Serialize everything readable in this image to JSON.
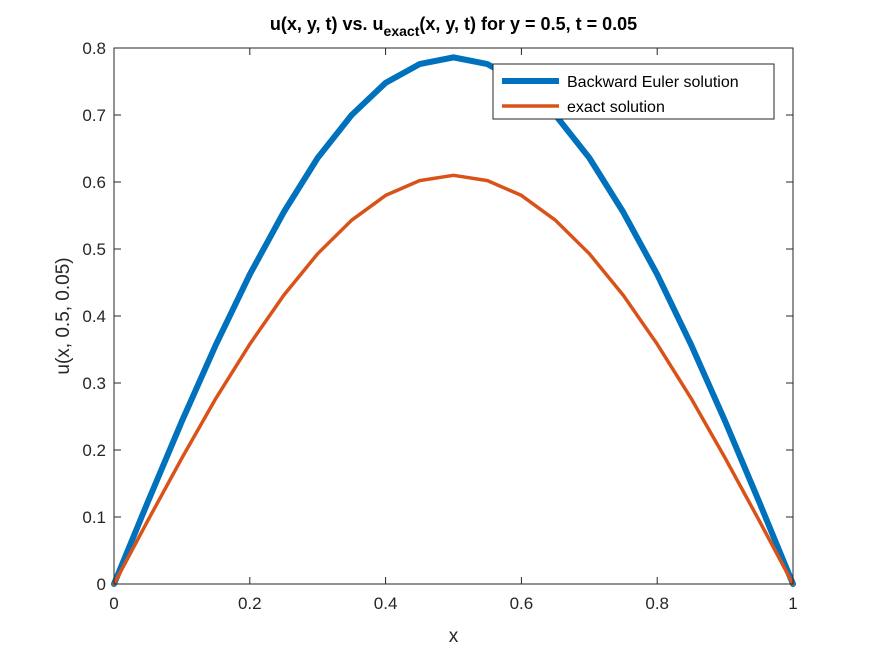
{
  "chart_data": {
    "type": "line",
    "title": {
      "part1": "u(x, y, t) vs. u",
      "subscript": "exact",
      "part2": "(x, y, t) for y = 0.5, t = 0.05"
    },
    "xlabel": "x",
    "ylabel": "u(x, 0.5, 0.05)",
    "xlim": [
      0,
      1
    ],
    "ylim": [
      0,
      0.8
    ],
    "xticks": [
      0,
      0.2,
      0.4,
      0.6,
      0.8,
      1
    ],
    "xtick_labels": [
      "0",
      "0.2",
      "0.4",
      "0.6",
      "0.8",
      "1"
    ],
    "yticks": [
      0,
      0.1,
      0.2,
      0.3,
      0.4,
      0.5,
      0.6,
      0.7,
      0.8
    ],
    "ytick_labels": [
      "0",
      "0.1",
      "0.2",
      "0.3",
      "0.4",
      "0.5",
      "0.6",
      "0.7",
      "0.8"
    ],
    "grid": false,
    "legend_position": "top-right",
    "x": [
      0,
      0.05,
      0.1,
      0.15,
      0.2,
      0.25,
      0.3,
      0.35,
      0.4,
      0.45,
      0.5,
      0.55,
      0.6,
      0.65,
      0.7,
      0.75,
      0.8,
      0.85,
      0.9,
      0.95,
      1
    ],
    "series": [
      {
        "name": "Backward Euler solution",
        "color": "#0072BD",
        "values": [
          0,
          0.123,
          0.243,
          0.357,
          0.462,
          0.555,
          0.636,
          0.7,
          0.748,
          0.776,
          0.786,
          0.776,
          0.748,
          0.7,
          0.636,
          0.555,
          0.462,
          0.357,
          0.243,
          0.123,
          0
        ]
      },
      {
        "name": "exact solution",
        "color": "#D95319",
        "values": [
          0,
          0.095,
          0.188,
          0.277,
          0.358,
          0.431,
          0.493,
          0.543,
          0.58,
          0.602,
          0.61,
          0.602,
          0.58,
          0.543,
          0.493,
          0.431,
          0.358,
          0.277,
          0.188,
          0.095,
          0
        ]
      }
    ]
  }
}
